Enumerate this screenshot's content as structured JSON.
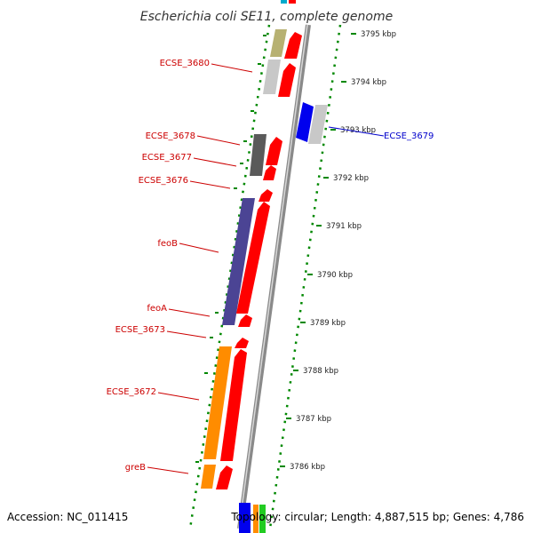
{
  "title": "Escherichia coli SE11, complete genome",
  "footer": {
    "accession": "Accession: NC_011415",
    "topology": "Topology: circular; Length: 4,887,515 bp; Genes: 4,786"
  },
  "ticks": [
    {
      "kbp": 3795,
      "label": "3795 kbp"
    },
    {
      "kbp": 3794,
      "label": "3794 kbp"
    },
    {
      "kbp": 3793,
      "label": "3793 kbp"
    },
    {
      "kbp": 3792,
      "label": "3792 kbp"
    },
    {
      "kbp": 3791,
      "label": "3791 kbp"
    },
    {
      "kbp": 3790,
      "label": "3790 kbp"
    },
    {
      "kbp": 3789,
      "label": "3789 kbp"
    },
    {
      "kbp": 3788,
      "label": "3788 kbp"
    },
    {
      "kbp": 3787,
      "label": "3787 kbp"
    },
    {
      "kbp": 3786,
      "label": "3786 kbp"
    }
  ],
  "labels": [
    {
      "text": "ECSE_3680",
      "color": "#cc0000"
    },
    {
      "text": "ECSE_3678",
      "color": "#cc0000"
    },
    {
      "text": "ECSE_3677",
      "color": "#cc0000"
    },
    {
      "text": "ECSE_3676",
      "color": "#cc0000"
    },
    {
      "text": "feoB",
      "color": "#cc0000"
    },
    {
      "text": "feoA",
      "color": "#cc0000"
    },
    {
      "text": "ECSE_3673",
      "color": "#cc0000"
    },
    {
      "text": "ECSE_3672",
      "color": "#cc0000"
    },
    {
      "text": "greB",
      "color": "#cc0000"
    },
    {
      "text": "ECSE_3679",
      "color": "#0000cc"
    }
  ],
  "colors": {
    "cds_forward": "#ff0000",
    "feoB": "#4b4494",
    "yellowish": "#b7b172",
    "light_gray": "#c8c8c8",
    "dark_gray": "#5a5a5a",
    "orange": "#ff8c00",
    "blue": "#0000ee",
    "backbone": "#8a8a8a",
    "ruler_dots": "#008800"
  }
}
